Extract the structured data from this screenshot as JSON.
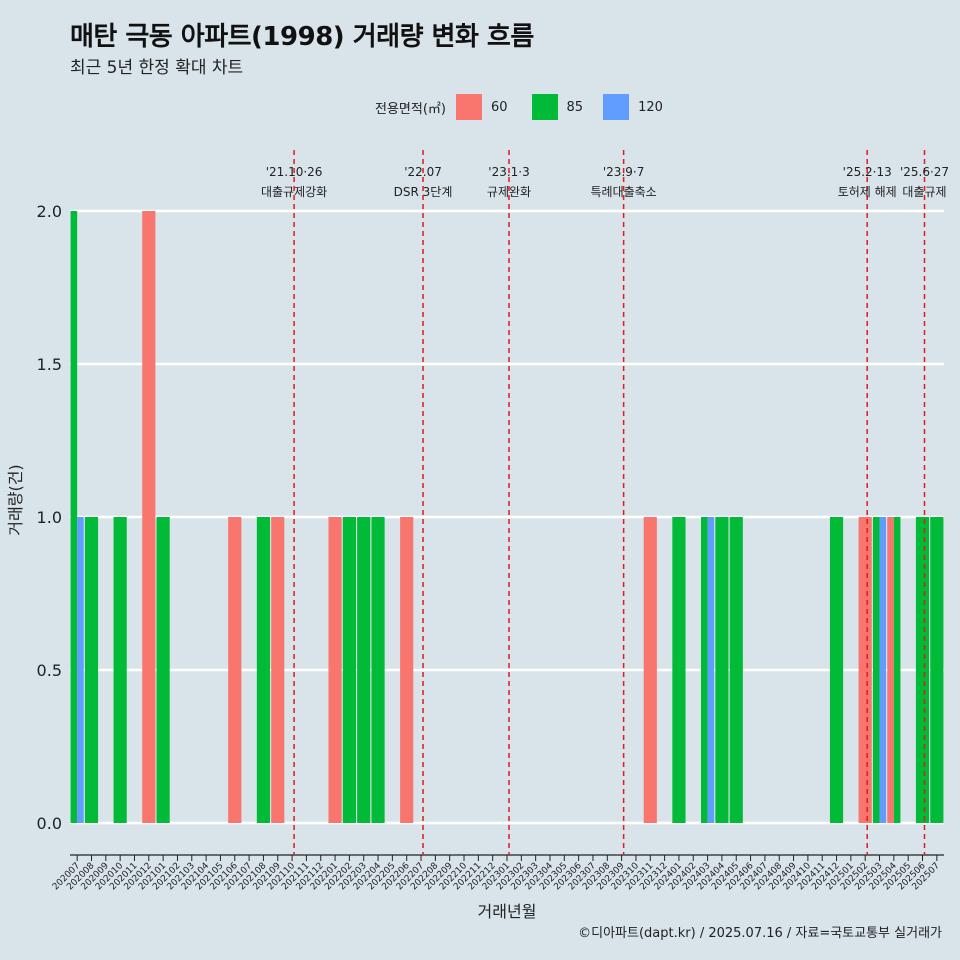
{
  "header": {
    "title": "매탄 극동 아파트(1998) 거래량 변화 흐름",
    "subtitle": "최근 5년 한정 확대 차트"
  },
  "legend": {
    "title": "전용면적(㎡)",
    "items": [
      {
        "label": "60",
        "color": "#f8766d"
      },
      {
        "label": "85",
        "color": "#00ba38"
      },
      {
        "label": "120",
        "color": "#619cff"
      }
    ]
  },
  "caption": "©디아파트(dapt.kr) / 2025.07.16 / 자료=국토교통부 실거래가",
  "chart_data": {
    "type": "bar",
    "title": "매탄 극동 아파트(1998) 거래량 변화 흐름",
    "xlabel": "거래년월",
    "ylabel": "거래량(건)",
    "ylim": [
      0,
      2
    ],
    "yticks": [
      "0.0",
      "0.5",
      "1.0",
      "1.5",
      "2.0"
    ],
    "categories": [
      "202007",
      "202008",
      "202009",
      "202010",
      "202011",
      "202012",
      "202101",
      "202102",
      "202103",
      "202104",
      "202105",
      "202106",
      "202107",
      "202108",
      "202109",
      "202110",
      "202111",
      "202112",
      "202201",
      "202202",
      "202203",
      "202204",
      "202205",
      "202206",
      "202207",
      "202208",
      "202209",
      "202210",
      "202211",
      "202212",
      "202301",
      "202302",
      "202303",
      "202304",
      "202305",
      "202306",
      "202307",
      "202308",
      "202309",
      "202310",
      "202311",
      "202312",
      "202401",
      "202402",
      "202403",
      "202404",
      "202405",
      "202406",
      "202407",
      "202408",
      "202409",
      "202410",
      "202411",
      "202412",
      "202501",
      "202502",
      "202503",
      "202504",
      "202505",
      "202506",
      "202507"
    ],
    "series": [
      {
        "name": "60",
        "color": "#f8766d",
        "values": [
          0,
          0,
          0,
          0,
          0,
          2,
          0,
          0,
          0,
          0,
          0,
          1,
          0,
          0,
          1,
          0,
          0,
          0,
          1,
          0,
          0,
          0,
          0,
          1,
          0,
          0,
          0,
          0,
          0,
          0,
          0,
          0,
          0,
          0,
          0,
          0,
          0,
          0,
          0,
          0,
          1,
          0,
          0,
          0,
          0,
          0,
          0,
          0,
          0,
          0,
          0,
          0,
          0,
          0,
          0,
          1,
          0,
          1,
          0,
          0,
          0
        ]
      },
      {
        "name": "85",
        "color": "#00ba38",
        "values": [
          2,
          1,
          0,
          1,
          0,
          0,
          1,
          0,
          0,
          0,
          0,
          0,
          0,
          1,
          0,
          0,
          0,
          0,
          0,
          1,
          1,
          1,
          0,
          0,
          0,
          0,
          0,
          0,
          0,
          0,
          0,
          0,
          0,
          0,
          0,
          0,
          0,
          0,
          0,
          0,
          0,
          0,
          1,
          0,
          1,
          1,
          1,
          0,
          0,
          0,
          0,
          0,
          0,
          1,
          0,
          0,
          1,
          1,
          0,
          1,
          1
        ]
      },
      {
        "name": "120",
        "color": "#619cff",
        "values": [
          1,
          0,
          0,
          0,
          0,
          0,
          0,
          0,
          0,
          0,
          0,
          0,
          0,
          0,
          0,
          0,
          0,
          0,
          0,
          0,
          0,
          0,
          0,
          0,
          0,
          0,
          0,
          0,
          0,
          0,
          0,
          0,
          0,
          0,
          0,
          0,
          0,
          0,
          0,
          0,
          0,
          0,
          0,
          0,
          1,
          0,
          0,
          0,
          0,
          0,
          0,
          0,
          0,
          0,
          0,
          0,
          1,
          0,
          0,
          0,
          0
        ]
      }
    ],
    "events": [
      {
        "date": "'21.10·26",
        "label": "대출규제강화",
        "month": "202110"
      },
      {
        "date": "'22.07",
        "label": "DSR 3단계",
        "month": "202207"
      },
      {
        "date": "'23.1·3",
        "label": "규제완화",
        "month": "202301"
      },
      {
        "date": "'23.9·7",
        "label": "특례대출축소",
        "month": "202309"
      },
      {
        "date": "'25.2·13",
        "label": "토허제 해제",
        "month": "202502"
      },
      {
        "date": "'25.6·27",
        "label": "대출규제",
        "month": "202506"
      }
    ]
  }
}
